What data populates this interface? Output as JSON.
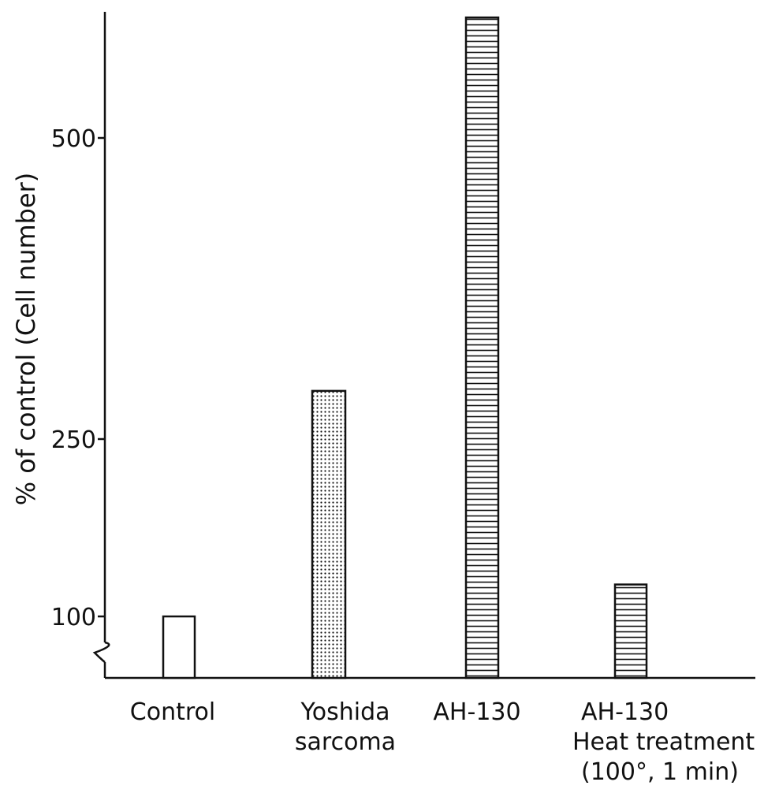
{
  "chart_data": {
    "type": "bar",
    "ylabel": "% of control (Cell number)",
    "ylim": [
      50,
      600
    ],
    "y_axis_break": true,
    "grid": false,
    "yticks": [
      {
        "value": 500,
        "label": "500"
      },
      {
        "value": 250,
        "label": "250"
      },
      {
        "value": 100,
        "label": "100"
      }
    ],
    "categories": [
      {
        "lines": [
          "Control"
        ],
        "value": 100,
        "fill": "none"
      },
      {
        "lines": [
          "Yoshida",
          "sarcoma"
        ],
        "value": 290,
        "fill": "dots"
      },
      {
        "lines": [
          "AH-130"
        ],
        "value": 600,
        "fill": "horizontal-lines"
      },
      {
        "lines": [
          "AH-130",
          "Heat treatment",
          "(100°, 1 min)"
        ],
        "value": 127,
        "fill": "horizontal-lines"
      }
    ],
    "colors": {
      "ink": "#111111",
      "background": "#ffffff"
    }
  }
}
